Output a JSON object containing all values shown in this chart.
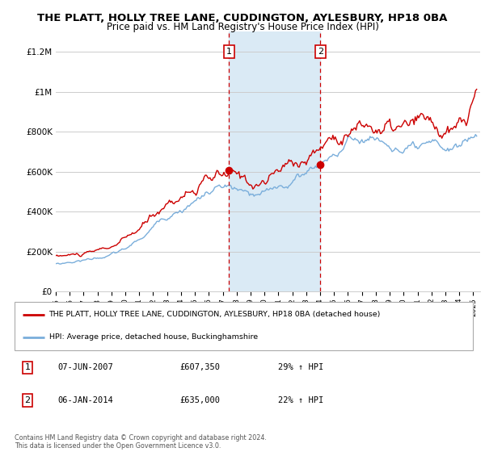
{
  "title": "THE PLATT, HOLLY TREE LANE, CUDDINGTON, AYLESBURY, HP18 0BA",
  "subtitle": "Price paid vs. HM Land Registry's House Price Index (HPI)",
  "ylabel_ticks": [
    "£0",
    "£200K",
    "£400K",
    "£600K",
    "£800K",
    "£1M",
    "£1.2M"
  ],
  "ytick_values": [
    0,
    200000,
    400000,
    600000,
    800000,
    1000000,
    1200000
  ],
  "ylim": [
    0,
    1300000
  ],
  "xlim_start": 1995.0,
  "xlim_end": 2025.5,
  "marker1_x": 2007.44,
  "marker1_y": 607350,
  "marker2_x": 2014.02,
  "marker2_y": 635000,
  "shade_x_start": 2007.44,
  "shade_x_end": 2014.02,
  "red_line_color": "#cc0000",
  "blue_line_color": "#7aaedb",
  "shade_color": "#daeaf5",
  "grid_color": "#cccccc",
  "background_color": "#ffffff",
  "legend_label_red": "THE PLATT, HOLLY TREE LANE, CUDDINGTON, AYLESBURY, HP18 0BA (detached house)",
  "legend_label_blue": "HPI: Average price, detached house, Buckinghamshire",
  "annotation1_label": "1",
  "annotation2_label": "2",
  "info1_date": "07-JUN-2007",
  "info1_price": "£607,350",
  "info1_hpi": "29% ↑ HPI",
  "info2_date": "06-JAN-2014",
  "info2_price": "£635,000",
  "info2_hpi": "22% ↑ HPI",
  "copyright_text": "Contains HM Land Registry data © Crown copyright and database right 2024.\nThis data is licensed under the Open Government Licence v3.0.",
  "title_fontsize": 9.5,
  "subtitle_fontsize": 8.5
}
